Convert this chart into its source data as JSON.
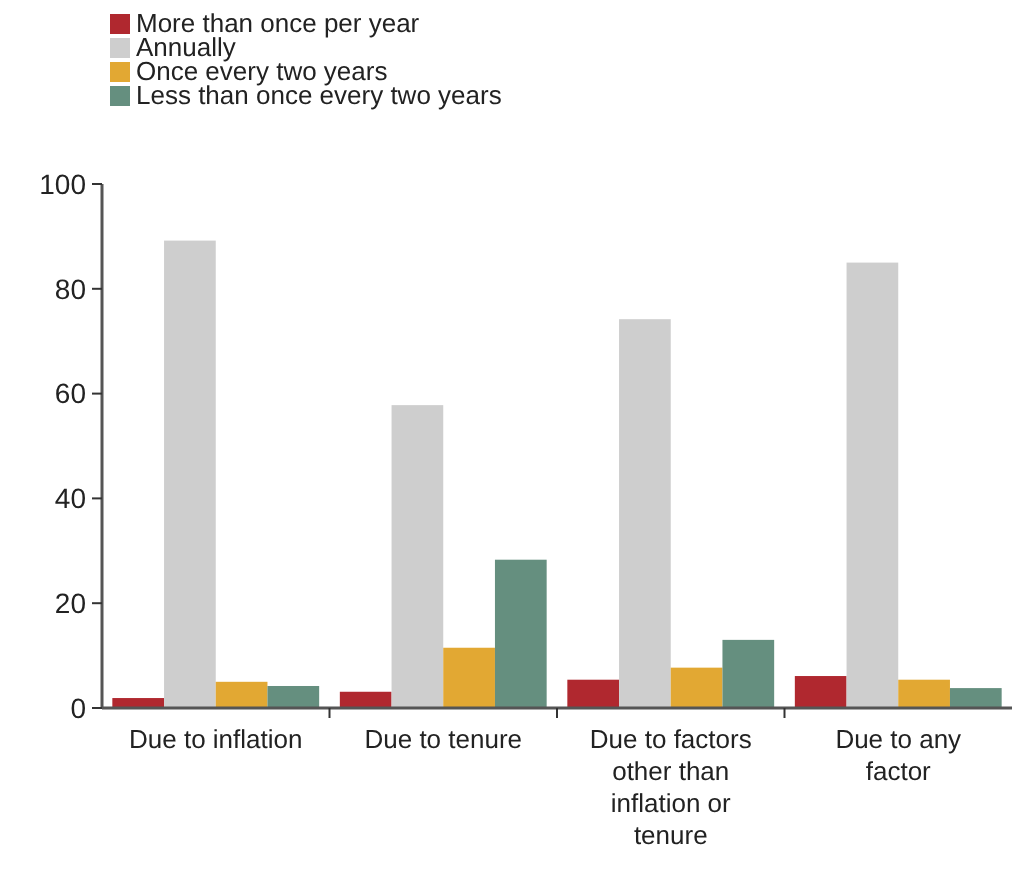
{
  "chart_data": {
    "type": "bar",
    "categories": [
      "Due to inflation",
      "Due to tenure",
      "Due to factors other than inflation or tenure",
      "Due to any factor"
    ],
    "series": [
      {
        "name": "More than once per year",
        "color": "#b0282f",
        "values": [
          1.9,
          3.1,
          5.4,
          6.1
        ]
      },
      {
        "name": "Annually",
        "color": "#cecece",
        "values": [
          89.2,
          57.8,
          74.2,
          85.0
        ]
      },
      {
        "name": "Once every two years",
        "color": "#e2a833",
        "values": [
          5.0,
          11.5,
          7.7,
          5.4
        ]
      },
      {
        "name": "Less than once every two years",
        "color": "#658f7f",
        "values": [
          4.2,
          28.3,
          13.0,
          3.8
        ]
      }
    ],
    "ylim": [
      0,
      100
    ],
    "yticks": [
      0,
      20,
      40,
      60,
      80,
      100
    ],
    "grid": false,
    "legend": "top left"
  }
}
